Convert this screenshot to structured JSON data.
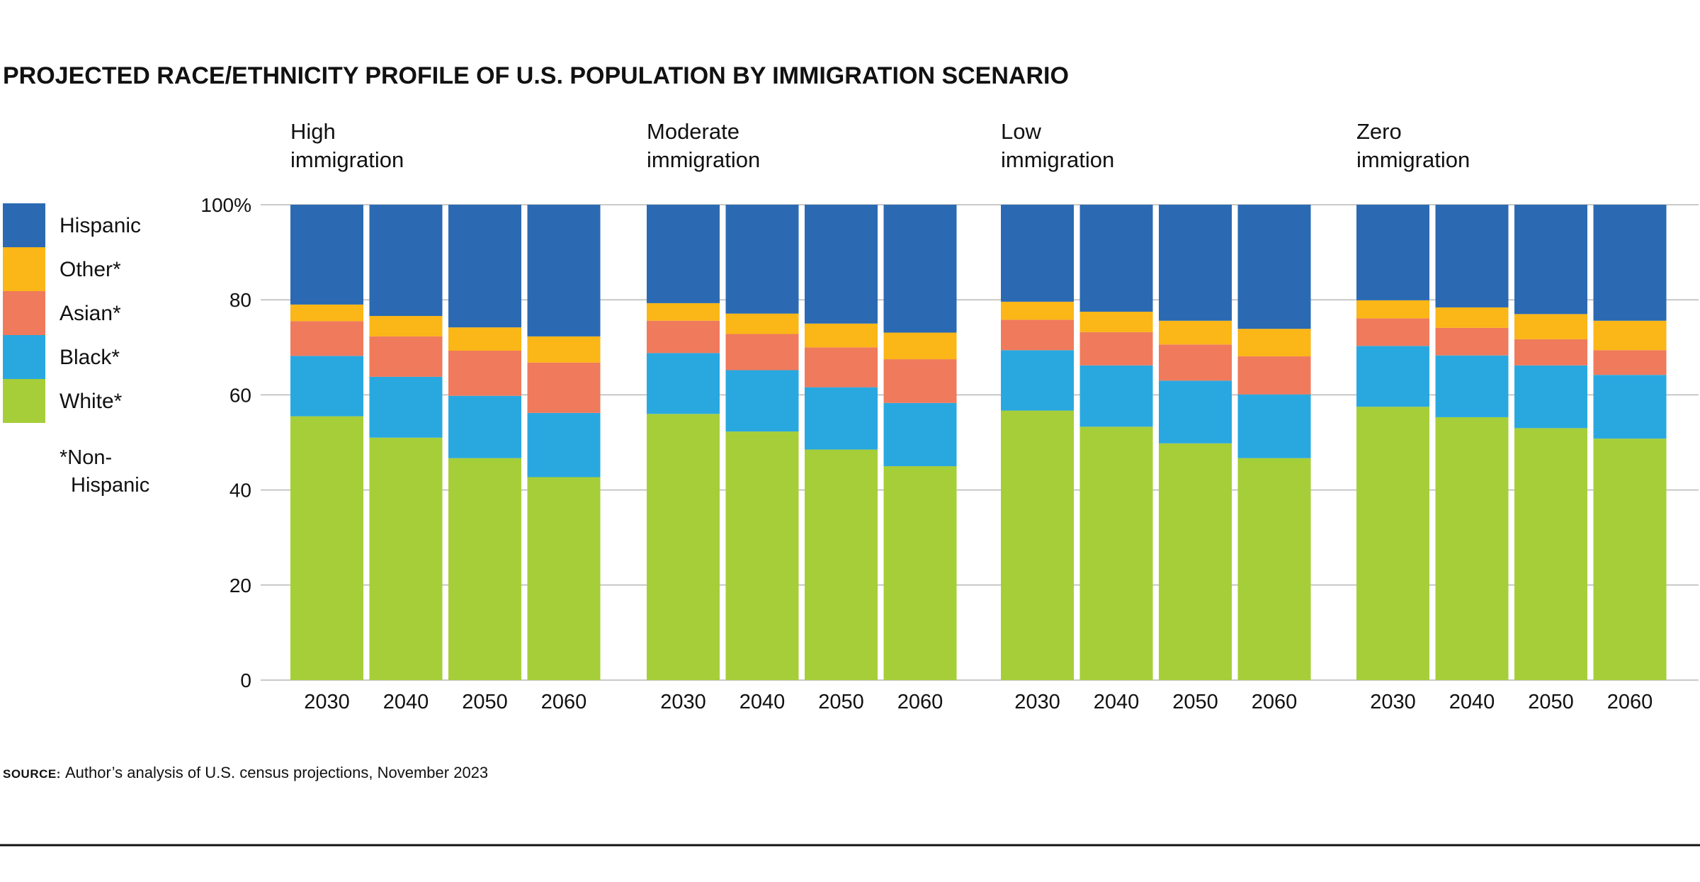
{
  "chart_data": {
    "type": "bar",
    "stacked": true,
    "title": "PROJECTED RACE/ETHNICITY PROFILE OF U.S. POPULATION BY IMMIGRATION SCENARIO",
    "ylim": [
      0,
      100
    ],
    "yticks": [
      "0",
      "20",
      "40",
      "60",
      "80",
      "100%"
    ],
    "ytick_values": [
      0,
      20,
      40,
      60,
      80,
      100
    ],
    "grid": true,
    "categories": [
      "2030",
      "2040",
      "2050",
      "2060"
    ],
    "legend": {
      "placement": "left",
      "entries": [
        {
          "name": "Hispanic",
          "color": "#2b6ab3"
        },
        {
          "name": "Other*",
          "color": "#fbb617"
        },
        {
          "name": "Asian*",
          "color": "#ef7a5c"
        },
        {
          "name": "Black*",
          "color": "#29a8e0"
        },
        {
          "name": "White*",
          "color": "#a6ce39"
        }
      ],
      "note_line1": "*Non-",
      "note_line2": "Hispanic"
    },
    "panels": [
      {
        "title_line1": "High",
        "title_line2": "immigration",
        "series": [
          {
            "name": "White*",
            "values": [
              55.5,
              51,
              46.7,
              42.7
            ]
          },
          {
            "name": "Black*",
            "values": [
              12.7,
              12.8,
              13.1,
              13.5
            ]
          },
          {
            "name": "Asian*",
            "values": [
              7.3,
              8.5,
              9.5,
              10.6
            ]
          },
          {
            "name": "Other*",
            "values": [
              3.5,
              4.3,
              4.9,
              5.5
            ]
          },
          {
            "name": "Hispanic",
            "values": [
              21,
              23.4,
              25.8,
              27.7
            ]
          }
        ]
      },
      {
        "title_line1": "Moderate",
        "title_line2": "immigration",
        "series": [
          {
            "name": "White*",
            "values": [
              56,
              52.3,
              48.5,
              45
            ]
          },
          {
            "name": "Black*",
            "values": [
              12.8,
              12.9,
              13.1,
              13.3
            ]
          },
          {
            "name": "Asian*",
            "values": [
              6.8,
              7.6,
              8.4,
              9.2
            ]
          },
          {
            "name": "Other*",
            "values": [
              3.7,
              4.3,
              5,
              5.6
            ]
          },
          {
            "name": "Hispanic",
            "values": [
              20.7,
              22.9,
              25,
              26.9
            ]
          }
        ]
      },
      {
        "title_line1": "Low",
        "title_line2": "immigration",
        "series": [
          {
            "name": "White*",
            "values": [
              56.7,
              53.3,
              49.8,
              46.7
            ]
          },
          {
            "name": "Black*",
            "values": [
              12.7,
              12.9,
              13.2,
              13.4
            ]
          },
          {
            "name": "Asian*",
            "values": [
              6.4,
              7,
              7.6,
              8
            ]
          },
          {
            "name": "Other*",
            "values": [
              3.8,
              4.3,
              5,
              5.8
            ]
          },
          {
            "name": "Hispanic",
            "values": [
              20.4,
              22.5,
              24.4,
              26.1
            ]
          }
        ]
      },
      {
        "title_line1": "Zero",
        "title_line2": "immigration",
        "series": [
          {
            "name": "White*",
            "values": [
              57.5,
              55.3,
              53,
              50.8
            ]
          },
          {
            "name": "Black*",
            "values": [
              12.8,
              13,
              13.2,
              13.4
            ]
          },
          {
            "name": "Asian*",
            "values": [
              5.8,
              5.8,
              5.5,
              5.2
            ]
          },
          {
            "name": "Other*",
            "values": [
              3.8,
              4.3,
              5.3,
              6.2
            ]
          },
          {
            "name": "Hispanic",
            "values": [
              20.1,
              21.6,
              23,
              24.4
            ]
          }
        ]
      }
    ]
  },
  "source": {
    "label": "SOURCE:",
    "text": "Author’s analysis of U.S. census projections, November 2023"
  }
}
